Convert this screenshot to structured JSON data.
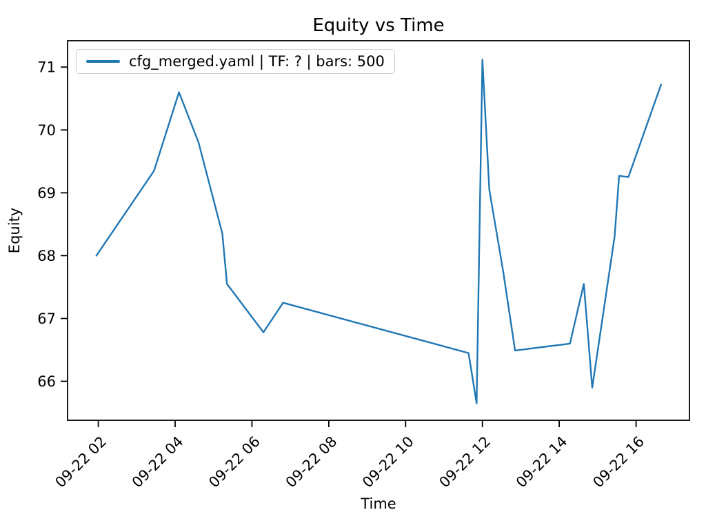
{
  "chart_data": {
    "type": "line",
    "title": "Equity vs Time",
    "xlabel": "Time",
    "ylabel": "Equity",
    "grid": false,
    "legend_position": "upper left",
    "legend_label": "cfg_merged.yaml | TF: ? | bars: 500",
    "x_unit": "hour of day on 09-22",
    "xlim": [
      1.2,
      17.39
    ],
    "ylim": [
      65.38,
      71.42
    ],
    "xticks": {
      "values": [
        2,
        4,
        6,
        8,
        10,
        12,
        14,
        16
      ],
      "labels": [
        "09-22 02",
        "09-22 04",
        "09-22 06",
        "09-22 08",
        "09-22 10",
        "09-22 12",
        "09-22 14",
        "09-22 16"
      ]
    },
    "yticks": {
      "values": [
        66,
        67,
        68,
        69,
        70,
        71
      ],
      "labels": [
        "66",
        "67",
        "68",
        "69",
        "70",
        "71"
      ]
    },
    "series": [
      {
        "name": "cfg_merged.yaml | TF: ? | bars: 500",
        "color": "#1f77b4",
        "points": [
          {
            "time": "09-22 01:57",
            "hour": 1.95,
            "equity": 68.0
          },
          {
            "time": "09-22 03:27",
            "hour": 3.45,
            "equity": 69.35
          },
          {
            "time": "09-22 04:06",
            "hour": 4.1,
            "equity": 70.6
          },
          {
            "time": "09-22 04:37",
            "hour": 4.61,
            "equity": 69.8
          },
          {
            "time": "09-22 05:14",
            "hour": 5.23,
            "equity": 68.35
          },
          {
            "time": "09-22 05:21",
            "hour": 5.35,
            "equity": 67.55
          },
          {
            "time": "09-22 06:18",
            "hour": 6.3,
            "equity": 66.78
          },
          {
            "time": "09-22 06:49",
            "hour": 6.81,
            "equity": 67.25
          },
          {
            "time": "09-22 11:38",
            "hour": 11.64,
            "equity": 66.45
          },
          {
            "time": "09-22 11:51",
            "hour": 11.85,
            "equity": 65.65
          },
          {
            "time": "09-22 12:00",
            "hour": 12.0,
            "equity": 71.12
          },
          {
            "time": "09-22 12:11",
            "hour": 12.18,
            "equity": 69.05
          },
          {
            "time": "09-22 12:32",
            "hour": 12.54,
            "equity": 67.75
          },
          {
            "time": "09-22 12:51",
            "hour": 12.85,
            "equity": 66.49
          },
          {
            "time": "09-22 13:37",
            "hour": 13.62,
            "equity": 66.55
          },
          {
            "time": "09-22 14:17",
            "hour": 14.28,
            "equity": 66.6
          },
          {
            "time": "09-22 14:38",
            "hour": 14.64,
            "equity": 67.55
          },
          {
            "time": "09-22 14:52",
            "hour": 14.86,
            "equity": 65.9
          },
          {
            "time": "09-22 15:26",
            "hour": 15.44,
            "equity": 68.3
          },
          {
            "time": "09-22 15:34",
            "hour": 15.56,
            "equity": 69.27
          },
          {
            "time": "09-22 15:48",
            "hour": 15.8,
            "equity": 69.25
          },
          {
            "time": "09-22 16:39",
            "hour": 16.65,
            "equity": 70.72
          }
        ]
      }
    ],
    "colors": {
      "line": "#1f77b4",
      "spines": "#000000",
      "tick_labels": "#000000",
      "legend_border": "#cccccc",
      "background": "#ffffff"
    }
  }
}
